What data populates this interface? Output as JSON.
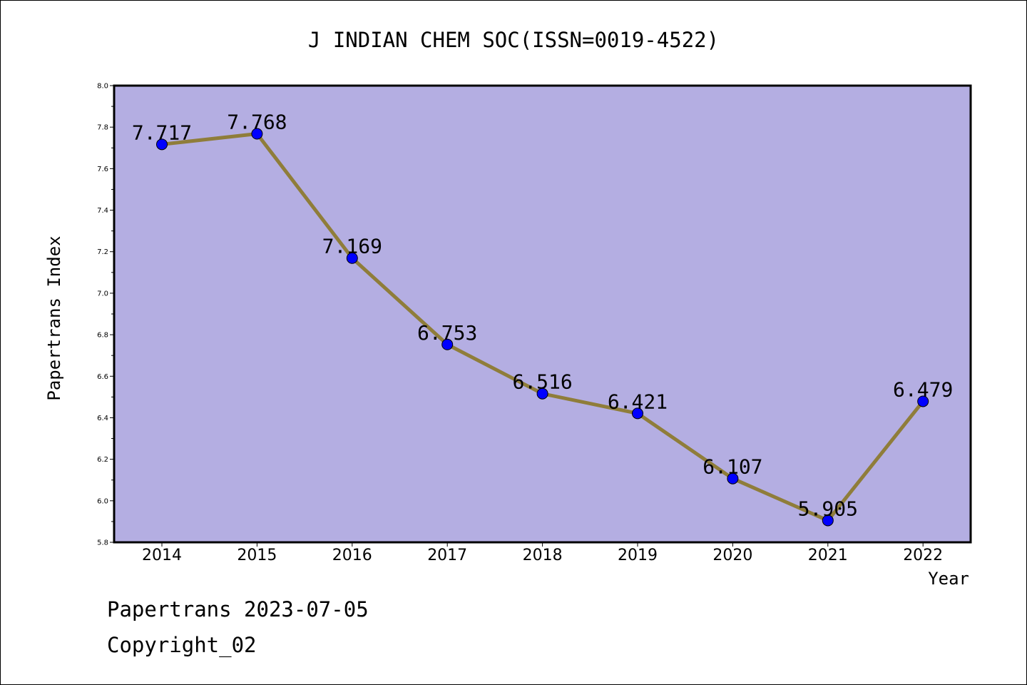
{
  "chart_data": {
    "type": "line",
    "title": "J INDIAN CHEM SOC(ISSN=0019-4522)",
    "xlabel": "Year",
    "ylabel": "Papertrans Index",
    "x": [
      "2014",
      "2015",
      "2016",
      "2017",
      "2018",
      "2019",
      "2020",
      "2021",
      "2022"
    ],
    "values": [
      7.717,
      7.768,
      7.169,
      6.753,
      6.516,
      6.421,
      6.107,
      5.905,
      6.479
    ],
    "data_labels": [
      "7.717",
      "7.768",
      "7.169",
      "6.753",
      "6.516",
      "6.421",
      "6.107",
      "5.905",
      "6.479"
    ],
    "ylim": [
      5.8,
      8.0
    ],
    "yticks": [
      "5.8",
      "6.0",
      "6.2",
      "6.4",
      "6.6",
      "6.8",
      "7.0",
      "7.2",
      "7.4",
      "7.6",
      "7.8",
      "8.0"
    ],
    "grid": false,
    "colors": {
      "plot_background": "#b4aee2",
      "line": "#8f7d3a",
      "marker": "#0000ff"
    }
  },
  "footer": {
    "line1": "Papertrans 2023-07-05",
    "line2": "Copyright_02"
  }
}
